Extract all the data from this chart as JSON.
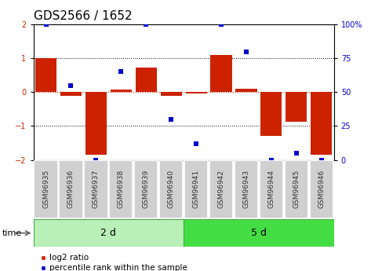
{
  "title": "GDS2566 / 1652",
  "samples": [
    "GSM96935",
    "GSM96936",
    "GSM96937",
    "GSM96938",
    "GSM96939",
    "GSM96940",
    "GSM96941",
    "GSM96942",
    "GSM96943",
    "GSM96944",
    "GSM96945",
    "GSM96946"
  ],
  "log2_ratio": [
    1.0,
    -0.12,
    -1.85,
    0.07,
    0.72,
    -0.1,
    -0.05,
    1.1,
    0.1,
    -1.28,
    -0.88,
    -1.85
  ],
  "percentile_rank": [
    100,
    55,
    0,
    65,
    100,
    30,
    12,
    100,
    80,
    0,
    5,
    0
  ],
  "groups": [
    {
      "label": "2 d",
      "start": 0,
      "end": 6
    },
    {
      "label": "5 d",
      "start": 6,
      "end": 12
    }
  ],
  "bar_color": "#cc2200",
  "dot_color": "#0000cc",
  "ylim": [
    -2,
    2
  ],
  "y2lim": [
    0,
    100
  ],
  "yticks": [
    -2,
    -1,
    0,
    1,
    2
  ],
  "y2ticks": [
    0,
    25,
    50,
    75,
    100
  ],
  "group_color_light": "#b8f0b8",
  "group_color_dark": "#44dd44",
  "sample_box_color": "#d0d0d0",
  "background_color": "#ffffff"
}
